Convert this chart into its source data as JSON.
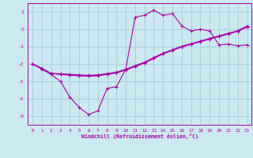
{
  "xlabel": "Windchill (Refroidissement éolien,°C)",
  "bg_color": "#cce8f0",
  "grid_color": "#aad4e0",
  "line_color": "#aa00aa",
  "xlim": [
    -0.5,
    23.5
  ],
  "ylim": [
    -5.5,
    1.5
  ],
  "yticks": [
    1,
    0,
    -1,
    -2,
    -3,
    -4,
    -5
  ],
  "xticks": [
    0,
    1,
    2,
    3,
    4,
    5,
    6,
    7,
    8,
    9,
    10,
    11,
    12,
    13,
    14,
    15,
    16,
    17,
    18,
    19,
    20,
    21,
    22,
    23
  ],
  "line1_x": [
    0,
    1,
    2,
    3,
    4,
    5,
    6,
    7,
    8,
    9,
    10,
    11,
    12,
    13,
    14,
    15,
    16,
    17,
    18,
    19,
    20,
    21,
    22,
    23
  ],
  "line1_y": [
    -2.0,
    -2.3,
    -2.6,
    -3.0,
    -3.9,
    -4.5,
    -4.9,
    -4.7,
    -3.4,
    -3.3,
    -2.3,
    0.7,
    0.8,
    1.1,
    0.8,
    0.9,
    0.2,
    -0.1,
    0.0,
    -0.1,
    -0.9,
    -0.85,
    -0.95,
    -0.9
  ],
  "line2_x": [
    0,
    1,
    2,
    3,
    4,
    5,
    6,
    7,
    8,
    9,
    10,
    11,
    12,
    13,
    14,
    15,
    16,
    17,
    18,
    19,
    20,
    21,
    22,
    23
  ],
  "line2_y": [
    -2.0,
    -2.25,
    -2.55,
    -2.6,
    -2.65,
    -2.68,
    -2.7,
    -2.68,
    -2.6,
    -2.52,
    -2.35,
    -2.15,
    -1.95,
    -1.68,
    -1.42,
    -1.22,
    -1.02,
    -0.87,
    -0.72,
    -0.57,
    -0.42,
    -0.27,
    -0.12,
    0.12
  ],
  "line3_x": [
    0,
    1,
    2,
    3,
    4,
    5,
    6,
    7,
    8,
    9,
    10,
    11,
    12,
    13,
    14,
    15,
    16,
    17,
    18,
    19,
    20,
    21,
    22,
    23
  ],
  "line3_y": [
    -2.0,
    -2.25,
    -2.55,
    -2.58,
    -2.62,
    -2.65,
    -2.67,
    -2.65,
    -2.57,
    -2.49,
    -2.32,
    -2.12,
    -1.92,
    -1.65,
    -1.4,
    -1.2,
    -1.0,
    -0.85,
    -0.7,
    -0.55,
    -0.4,
    -0.25,
    -0.1,
    0.15
  ],
  "line4_x": [
    0,
    1,
    2,
    3,
    4,
    5,
    6,
    7,
    8,
    9,
    10,
    11,
    12,
    13,
    14,
    15,
    16,
    17,
    18,
    19,
    20,
    21,
    22,
    23
  ],
  "line4_y": [
    -2.0,
    -2.25,
    -2.55,
    -2.56,
    -2.6,
    -2.63,
    -2.65,
    -2.63,
    -2.55,
    -2.47,
    -2.3,
    -2.1,
    -1.9,
    -1.63,
    -1.38,
    -1.18,
    -0.98,
    -0.83,
    -0.68,
    -0.53,
    -0.38,
    -0.23,
    -0.08,
    0.18
  ]
}
